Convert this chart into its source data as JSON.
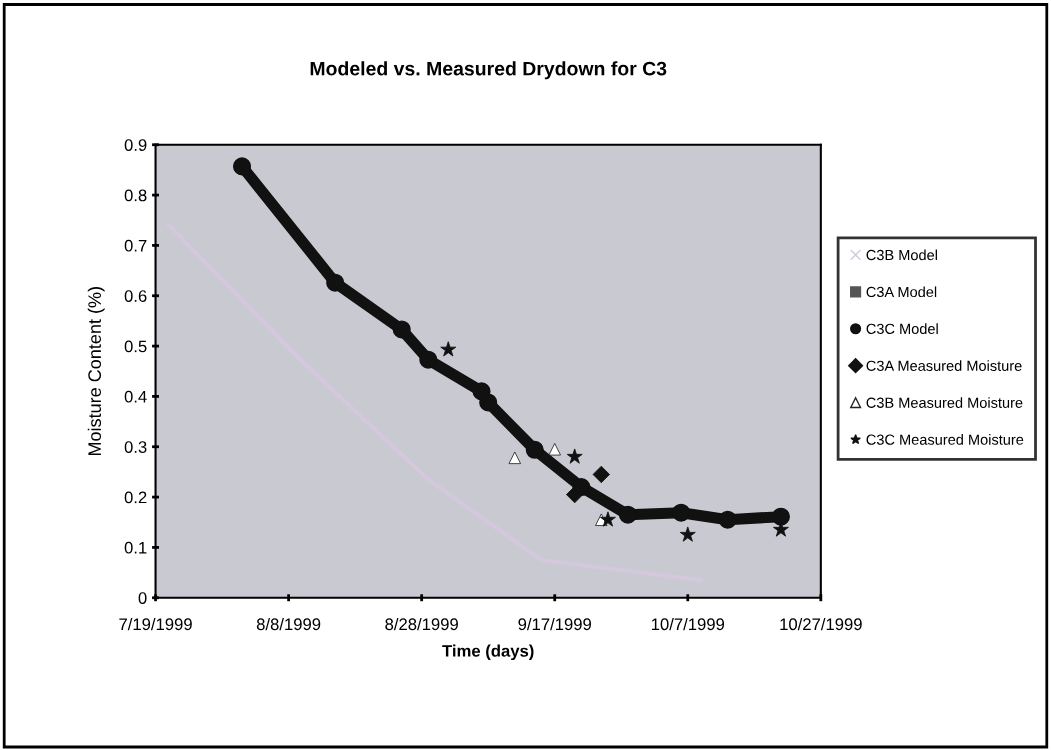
{
  "chart_data": {
    "type": "line",
    "title": "Modeled vs. Measured Drydown for C3",
    "xlabel": "Time (days)",
    "ylabel": "Moisture Content (%)",
    "xlim": [
      "1999-07-19",
      "1999-10-27"
    ],
    "xticks": [
      {
        "value": "1999-07-19",
        "label": "7/19/1999"
      },
      {
        "value": "1999-08-08",
        "label": "8/8/1999"
      },
      {
        "value": "1999-08-28",
        "label": "8/28/1999"
      },
      {
        "value": "1999-09-17",
        "label": "9/17/1999"
      },
      {
        "value": "1999-10-07",
        "label": "10/7/1999"
      },
      {
        "value": "1999-10-27",
        "label": "10/27/1999"
      }
    ],
    "ylim": [
      0,
      0.9
    ],
    "yticks": [
      0,
      0.1,
      0.2,
      0.3,
      0.4,
      0.5,
      0.6,
      0.7,
      0.8,
      0.9
    ],
    "grid": false,
    "legend": "right",
    "series": [
      {
        "name": "C3B Model",
        "marker": "none",
        "color": "#d4c8dc",
        "x": [
          "1999-07-21",
          "1999-08-10",
          "1999-08-29",
          "1999-09-15",
          "1999-10-09"
        ],
        "values": [
          0.74,
          0.47,
          0.235,
          0.075,
          0.035
        ]
      },
      {
        "name": "C3A Model",
        "marker": "square",
        "color": "#555555"
      },
      {
        "name": "C3C Model",
        "marker": "circle",
        "color": "#111111",
        "x": [
          "1999-08-01",
          "1999-08-15",
          "1999-08-25",
          "1999-08-29",
          "1999-09-06",
          "1999-09-07",
          "1999-09-14",
          "1999-09-21",
          "1999-09-28",
          "1999-10-06",
          "1999-10-13",
          "1999-10-21"
        ],
        "values": [
          0.857,
          0.626,
          0.533,
          0.473,
          0.41,
          0.388,
          0.294,
          0.22,
          0.165,
          0.169,
          0.155,
          0.161
        ]
      },
      {
        "name": "C3A Measured Moisture",
        "type": "scatter",
        "marker": "diamond",
        "color": "#111111",
        "x": [
          "1999-09-20",
          "1999-09-24"
        ],
        "values": [
          0.205,
          0.245
        ]
      },
      {
        "name": "C3B Measured Moisture",
        "type": "scatter",
        "marker": "triangle",
        "color": "#ffffff",
        "x": [
          "1999-09-11",
          "1999-09-17",
          "1999-09-24"
        ],
        "values": [
          0.278,
          0.295,
          0.155
        ]
      },
      {
        "name": "C3C Measured Moisture",
        "type": "scatter",
        "marker": "star",
        "color": "#111111",
        "x": [
          "1999-09-01",
          "1999-09-20",
          "1999-09-25",
          "1999-10-07",
          "1999-10-21"
        ],
        "values": [
          0.493,
          0.28,
          0.155,
          0.125,
          0.135
        ]
      }
    ]
  }
}
